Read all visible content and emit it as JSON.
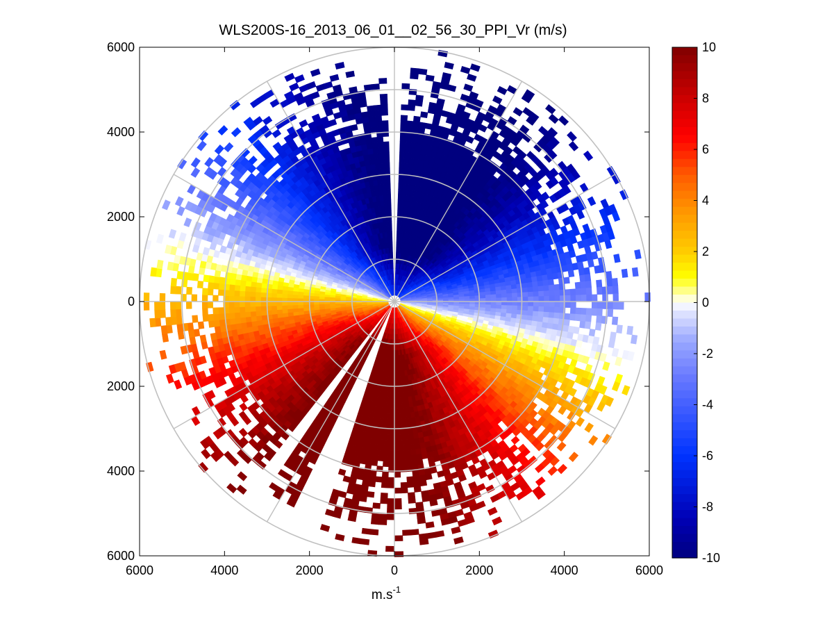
{
  "chart_data": {
    "type": "heatmap",
    "plot_kind": "polar-ppi-radial-velocity",
    "title": "WLS200S-16_2013_06_01__02_56_30_PPI_Vr (m/s)",
    "xlabel_base": "m.s",
    "xlabel_exponent": "-1",
    "ylabel": "",
    "xlim": [
      -6000,
      6000
    ],
    "ylim": [
      -6000,
      6000
    ],
    "x_ticks": [
      -6000,
      -4000,
      -2000,
      0,
      2000,
      4000,
      6000
    ],
    "x_tick_labels": [
      "6000",
      "4000",
      "2000",
      "0",
      "2000",
      "4000",
      "6000"
    ],
    "y_ticks": [
      6000,
      4000,
      2000,
      0,
      -2000,
      -4000,
      -6000
    ],
    "y_tick_labels": [
      "6000",
      "4000",
      "2000",
      "0",
      "2000",
      "4000",
      "6000"
    ],
    "range_rings_m": [
      1000,
      2000,
      3000,
      4000,
      5000,
      6000
    ],
    "azimuth_spokes_deg": [
      0,
      30,
      60,
      90,
      120,
      150,
      180,
      210,
      240,
      270,
      300,
      330
    ],
    "max_range_m": 6000,
    "data_range_m": 6000,
    "zero_velocity_direction_deg": 104,
    "velocity_peak_direction_deg": 194,
    "velocity_amplitude_ms": 11,
    "nodata_gaps_deg": [
      [
        -2,
        2
      ],
      [
        199,
        205
      ],
      [
        214,
        217
      ]
    ],
    "colorbar": {
      "min": -10,
      "max": 10,
      "ticks": [
        10,
        8,
        6,
        4,
        2,
        0,
        -2,
        -4,
        -6,
        -8,
        -10
      ],
      "tick_labels": [
        "10",
        "8",
        "6",
        "4",
        "2",
        "0",
        "-2",
        "-4",
        "-6",
        "-8",
        "-10"
      ],
      "colormap": [
        [
          -10,
          "#00007f"
        ],
        [
          -8.5,
          "#0000b4"
        ],
        [
          -6,
          "#0033ff"
        ],
        [
          -4.5,
          "#3355ff"
        ],
        [
          -3,
          "#6677ff"
        ],
        [
          -1.5,
          "#9aa8ff"
        ],
        [
          -0.3,
          "#e6e9ff"
        ],
        [
          0,
          "#ffffff"
        ],
        [
          0.3,
          "#ffffb0"
        ],
        [
          1,
          "#ffff00"
        ],
        [
          2,
          "#ffcc00"
        ],
        [
          3.5,
          "#ff9900"
        ],
        [
          5,
          "#ff5a00"
        ],
        [
          6.5,
          "#ff0000"
        ],
        [
          8,
          "#cc0000"
        ],
        [
          10,
          "#800000"
        ]
      ]
    }
  }
}
